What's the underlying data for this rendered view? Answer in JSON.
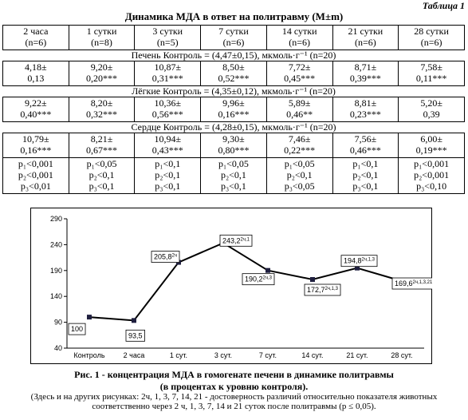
{
  "doc": {
    "table_label": "Таблица 1",
    "title": "Динамика МДА в ответ на политравму (M±m)",
    "table": {
      "header": [
        [
          "2 часа",
          "(n=6)"
        ],
        [
          "1 сутки",
          "(n=8)"
        ],
        [
          "3 сутки",
          "(n=5)"
        ],
        [
          "7 сутки",
          "(n=6)"
        ],
        [
          "14 сутки",
          "(n=6)"
        ],
        [
          "21 сутки",
          "(n=6)"
        ],
        [
          "28 сутки",
          "(n=6)"
        ]
      ],
      "sections": [
        {
          "title": "Печень  Контроль = (4,47±0,15), мкмоль·г⁻¹ (n=20)",
          "cells": [
            [
              "4,18±",
              "0,13"
            ],
            [
              "9,20±",
              "0,20***"
            ],
            [
              "10,87±",
              "0,31***"
            ],
            [
              "8,50±",
              "0,52***"
            ],
            [
              "7,72±",
              "0,45***"
            ],
            [
              "8,71±",
              "0,39***"
            ],
            [
              "7,58±",
              "0,11***"
            ]
          ]
        },
        {
          "title": "Лёгкие Контроль = (4,35±0,12), мкмоль·г⁻¹ (n=20)",
          "cells": [
            [
              "9,22±",
              "0,40***"
            ],
            [
              "8,20±",
              "0,32***"
            ],
            [
              "10,36±",
              "0,56***"
            ],
            [
              "9,96±",
              "0,16***"
            ],
            [
              "5,89±",
              "0,46**"
            ],
            [
              "8,81±",
              "0,23***"
            ],
            [
              "5,20±",
              "0,39"
            ]
          ]
        },
        {
          "title": "Сердце Контроль = (4,28±0,15), мкмоль·г⁻¹ (n=20)",
          "cells": [
            [
              "10,79±",
              "0,16***"
            ],
            [
              "8,21±",
              "0,67***"
            ],
            [
              "10,94±",
              "0,43***"
            ],
            [
              "9,30±",
              "0,80***"
            ],
            [
              "7,46±",
              "0,22***"
            ],
            [
              "7,56±",
              "0,46***"
            ],
            [
              "6,00±",
              "0,19***"
            ]
          ]
        }
      ],
      "p_rows": [
        [
          "p₁<0,001",
          "p₂<0,001",
          "p₃<0,01"
        ],
        [
          "p₁<0,05",
          "p₂<0,1",
          "p₃<0,1"
        ],
        [
          "p₁<0,1",
          "p₂<0,1",
          "p₃<0,1"
        ],
        [
          "p₁<0,05",
          "p₂<0,1",
          "p₃<0,1"
        ],
        [
          "p₁<0,05",
          "p₂<0,1",
          "p₃<0,05"
        ],
        [
          "p₁<0,1",
          "p₂<0,1",
          "p₃<0,1"
        ],
        [
          "p₁<0,001",
          "p₂<0,001",
          "p₃<0,10"
        ]
      ]
    }
  },
  "chart_data": {
    "type": "line",
    "categories": [
      "Контроль",
      "2 часа",
      "1 сут.",
      "3 сут.",
      "7 сут.",
      "14 сут.",
      "21 сут.",
      "28 сут."
    ],
    "values": [
      100,
      93.5,
      205.8,
      243.2,
      190.2,
      172.7,
      194.8,
      169.6
    ],
    "value_labels": [
      "100",
      "93,5",
      "205,8",
      "243,2",
      "190,2",
      "172,7",
      "194,8",
      "169,6"
    ],
    "label_notes": [
      null,
      null,
      "2ч",
      "2ч,1",
      "2ч,3",
      "2ч,1,3",
      "2ч,1,3",
      "2ч,1,3,21"
    ],
    "color": "#000000",
    "marker_color": "#1f1f3f",
    "ylim": [
      40,
      290
    ],
    "yticks": [
      40,
      90,
      140,
      190,
      240,
      290
    ]
  },
  "caption": {
    "title": "Рис. 1 - концентрация МДА в гомогенате печени в динамике политравмы",
    "subtitle": "(в процентах к уровню контроля).",
    "note": "(Здесь и на других рисунках: 2ч, 1, 3, 7, 14, 21 - достоверность различий относительно показателя животных соответственно через 2 ч, 1, 3, 7, 14 и 21 суток после политравмы (p ≤ 0,05)."
  }
}
